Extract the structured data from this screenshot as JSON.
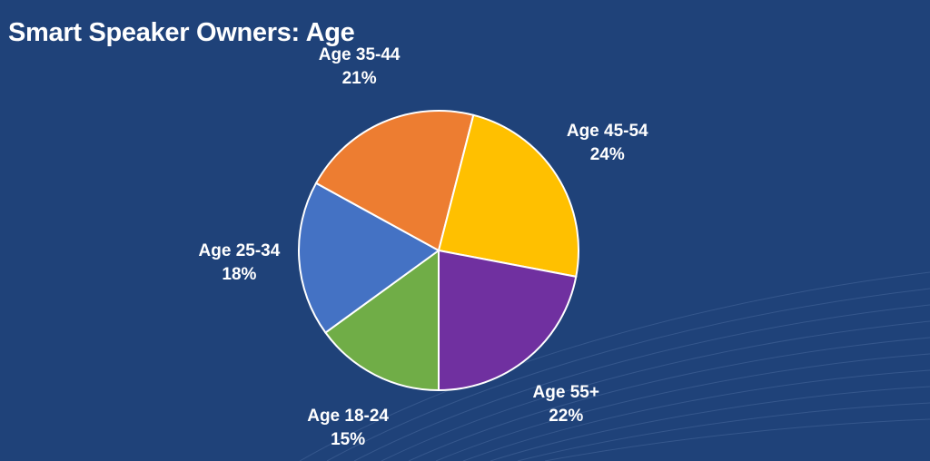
{
  "chart_data": {
    "type": "pie",
    "title": "Smart Speaker Owners: Age",
    "slices": [
      {
        "name": "Age 18-24",
        "percent_label": "15%",
        "value": 15,
        "color": "#70ad47"
      },
      {
        "name": "Age 25-34",
        "percent_label": "18%",
        "value": 18,
        "color": "#4472c4"
      },
      {
        "name": "Age 35-44",
        "percent_label": "21%",
        "value": 21,
        "color": "#ed7d31"
      },
      {
        "name": "Age 45-54",
        "percent_label": "24%",
        "value": 24,
        "color": "#ffc000"
      },
      {
        "name": "Age 55+",
        "percent_label": "22%",
        "value": 22,
        "color": "#7030a0"
      }
    ],
    "start": "bottom",
    "direction": "clockwise",
    "legend": "none",
    "labels": "outside"
  },
  "colors": {
    "background": "#1f4279",
    "slice_border": "#ffffff",
    "text": "#ffffff"
  }
}
